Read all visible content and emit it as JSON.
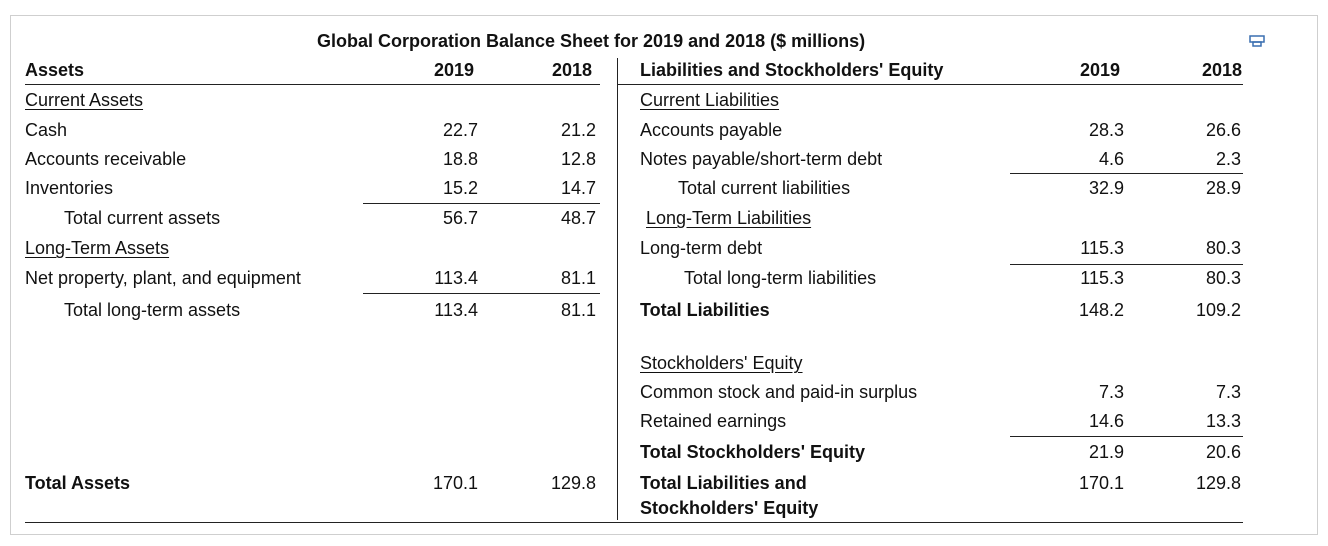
{
  "title": "Global Corporation Balance Sheet for 2019 and 2018 ($ millions)",
  "left": {
    "header": [
      "Assets",
      "2019",
      "2018"
    ],
    "rows": [
      {
        "label": "Current Assets"
      },
      {
        "label": "Cash",
        "values": [
          "22.7",
          "21.2"
        ]
      },
      {
        "label": "Accounts receivable",
        "values": [
          "18.8",
          "12.8"
        ]
      },
      {
        "label": "Inventories",
        "values": [
          "15.2",
          "14.7"
        ]
      },
      {
        "label": "Total current assets",
        "values": [
          "56.7",
          "48.7"
        ]
      },
      {
        "label": "Long-Term Assets"
      },
      {
        "label": "Net property, plant, and equipment",
        "values": [
          "113.4",
          "81.1"
        ]
      },
      {
        "label": "Total long-term assets",
        "values": [
          "113.4",
          "81.1"
        ]
      },
      {
        "label": "Total Assets",
        "values": [
          "170.1",
          "129.8"
        ]
      }
    ]
  },
  "right": {
    "header": [
      "Liabilities and Stockholders' Equity",
      "2019",
      "2018"
    ],
    "rows": [
      {
        "label": "Current Liabilities"
      },
      {
        "label": "Accounts payable",
        "values": [
          "28.3",
          "26.6"
        ]
      },
      {
        "label": "Notes payable/short-term debt",
        "values": [
          "4.6",
          "2.3"
        ]
      },
      {
        "label": "Total current liabilities",
        "values": [
          "32.9",
          "28.9"
        ]
      },
      {
        "label": "Long-Term Liabilities"
      },
      {
        "label": "Long-term debt",
        "values": [
          "115.3",
          "80.3"
        ]
      },
      {
        "label": "Total long-term liabilities",
        "values": [
          "115.3",
          "80.3"
        ]
      },
      {
        "label": "Total Liabilities",
        "values": [
          "148.2",
          "109.2"
        ]
      },
      {
        "label": "Stockholders' Equity"
      },
      {
        "label": "Common stock and paid-in surplus",
        "values": [
          "7.3",
          "7.3"
        ]
      },
      {
        "label": "Retained earnings",
        "values": [
          "14.6",
          "13.3"
        ]
      },
      {
        "label": "Total Stockholders' Equity",
        "values": [
          "21.9",
          "20.6"
        ]
      },
      {
        "label": "Total Liabilities and Stockholders' Equity",
        "values": [
          "170.1",
          "129.8"
        ]
      }
    ]
  }
}
